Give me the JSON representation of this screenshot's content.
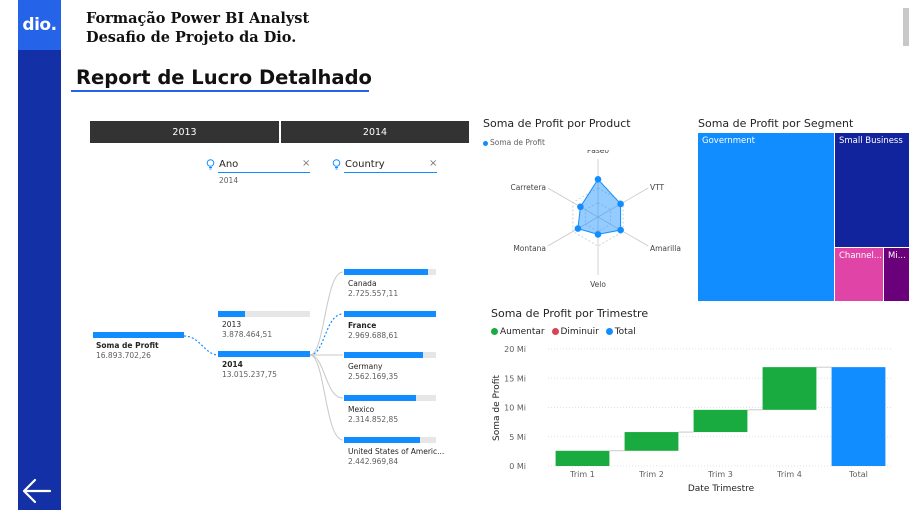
{
  "header": {
    "logo_text": "dio.",
    "line1": "Formação Power BI Analyst",
    "line2": "Desafio de Projeto da Dio."
  },
  "report_title": "Report de Lucro Detalhado",
  "year_slicer": {
    "items": [
      "2013",
      "2014"
    ]
  },
  "filters": {
    "ano": {
      "label": "Ano",
      "value": "2014",
      "icon": "lightbulb-icon"
    },
    "country": {
      "label": "Country",
      "value": "",
      "icon": "lightbulb-icon"
    }
  },
  "decomp_tree": {
    "root": {
      "label": "Soma de Profit",
      "value": "16.893.702,26"
    },
    "years": [
      {
        "label": "2013",
        "value": "3.878.464,51",
        "fraction": 0.298,
        "bold": false
      },
      {
        "label": "2014",
        "value": "13.015.237,75",
        "fraction": 1.0,
        "bold": true
      }
    ],
    "countries": [
      {
        "label": "Canada",
        "value": "2.725.557,11",
        "fraction": 0.918,
        "bold": false
      },
      {
        "label": "France",
        "value": "2.969.688,61",
        "fraction": 1.0,
        "bold": true
      },
      {
        "label": "Germany",
        "value": "2.562.169,35",
        "fraction": 0.863,
        "bold": false
      },
      {
        "label": "Mexico",
        "value": "2.314.852,85",
        "fraction": 0.78,
        "bold": false
      },
      {
        "label": "United States of Americ...",
        "value": "2.442.969,84",
        "fraction": 0.823,
        "bold": false
      }
    ]
  },
  "radar": {
    "title": "Soma de Profit por Product",
    "legend": "Soma de Profit",
    "color": "#118dff",
    "axes": [
      "Paseo",
      "VTT",
      "Amarilla",
      "Velo",
      "Montana",
      "Carretera"
    ],
    "values": [
      0.65,
      0.45,
      0.45,
      0.3,
      0.4,
      0.35
    ]
  },
  "treemap": {
    "title": "Soma de Profit por Segment",
    "cells": [
      {
        "label": "Government",
        "color": "#118dff"
      },
      {
        "label": "Small Business",
        "color": "#12239e"
      },
      {
        "label": "Channel...",
        "color": "#e044a7"
      },
      {
        "label": "Mi...",
        "color": "#6b007b"
      }
    ]
  },
  "waterfall": {
    "title": "Soma de Profit por Trimestre",
    "legend": [
      {
        "label": "Aumentar",
        "color": "#1aab40"
      },
      {
        "label": "Diminuir",
        "color": "#d64554"
      },
      {
        "label": "Total",
        "color": "#118dff"
      }
    ],
    "xlabel": "Date Trimestre",
    "ylabel": "Soma de Profit"
  },
  "chart_data": {
    "type": "waterfall",
    "title": "Soma de Profit por Trimestre",
    "xlabel": "Date Trimestre",
    "ylabel": "Soma de Profit",
    "categories": [
      "Trim 1",
      "Trim 2",
      "Trim 3",
      "Trim 4",
      "Total"
    ],
    "values": [
      2.6,
      3.2,
      3.8,
      7.3,
      16.9
    ],
    "kinds": [
      "increase",
      "increase",
      "increase",
      "increase",
      "total"
    ],
    "ylim": [
      0,
      20
    ],
    "yticks": [
      "0 Mi",
      "5 Mi",
      "10 Mi",
      "15 Mi",
      "20 Mi"
    ],
    "colors": {
      "increase": "#1aab40",
      "decrease": "#d64554",
      "total": "#118dff"
    },
    "grid": true
  }
}
